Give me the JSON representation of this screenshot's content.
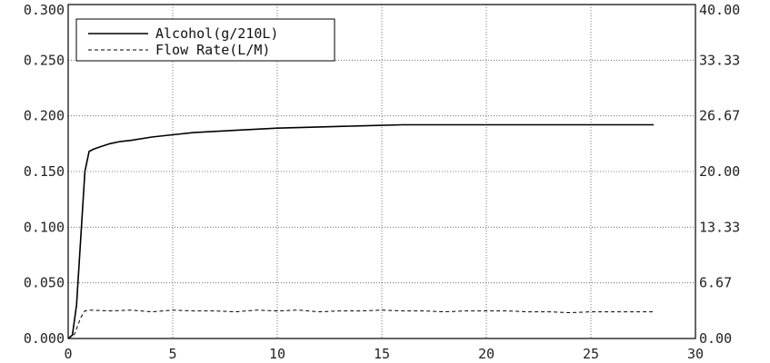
{
  "chart_data": {
    "type": "line",
    "title": "",
    "xlabel": "",
    "ylabel": "",
    "y2label": "",
    "xlim": [
      0,
      30
    ],
    "ylim": [
      0,
      0.3
    ],
    "y2lim": [
      0,
      40
    ],
    "grid": true,
    "legend_position": "top-left",
    "x_ticks": [
      "0",
      "5",
      "10",
      "15",
      "20",
      "25",
      "30"
    ],
    "y_ticks": [
      "0.000",
      "0.050",
      "0.100",
      "0.150",
      "0.200",
      "0.250",
      "0.300"
    ],
    "y2_ticks": [
      "0.00",
      "6.67",
      "13.33",
      "20.00",
      "26.67",
      "33.33",
      "40.00"
    ],
    "series": [
      {
        "name": "Alcohol(g/210L)",
        "axis": "left",
        "style": "solid",
        "x": [
          0,
          0.2,
          0.4,
          0.6,
          0.8,
          1.0,
          1.2,
          1.5,
          2,
          2.5,
          3,
          4,
          5,
          6,
          7,
          8,
          10,
          12,
          14,
          16,
          18,
          20,
          22,
          24,
          26,
          28
        ],
        "y": [
          0,
          0.003,
          0.03,
          0.09,
          0.15,
          0.168,
          0.17,
          0.172,
          0.175,
          0.177,
          0.178,
          0.181,
          0.183,
          0.185,
          0.186,
          0.187,
          0.189,
          0.19,
          0.191,
          0.192,
          0.192,
          0.192,
          0.192,
          0.192,
          0.192,
          0.192
        ]
      },
      {
        "name": "Flow Rate(L/M)",
        "axis": "right",
        "style": "dashed",
        "x": [
          0,
          0.3,
          0.6,
          0.8,
          1,
          2,
          3,
          4,
          5,
          6,
          7,
          8,
          9,
          10,
          11,
          12,
          13,
          14,
          15,
          16,
          17,
          18,
          19,
          20,
          21,
          22,
          23,
          24,
          25,
          26,
          27,
          28
        ],
        "y": [
          0,
          0.5,
          2.5,
          3.3,
          3.4,
          3.3,
          3.4,
          3.2,
          3.4,
          3.3,
          3.3,
          3.2,
          3.4,
          3.3,
          3.4,
          3.2,
          3.3,
          3.3,
          3.4,
          3.3,
          3.3,
          3.2,
          3.3,
          3.3,
          3.3,
          3.2,
          3.2,
          3.1,
          3.2,
          3.2,
          3.2,
          3.2
        ]
      }
    ]
  }
}
